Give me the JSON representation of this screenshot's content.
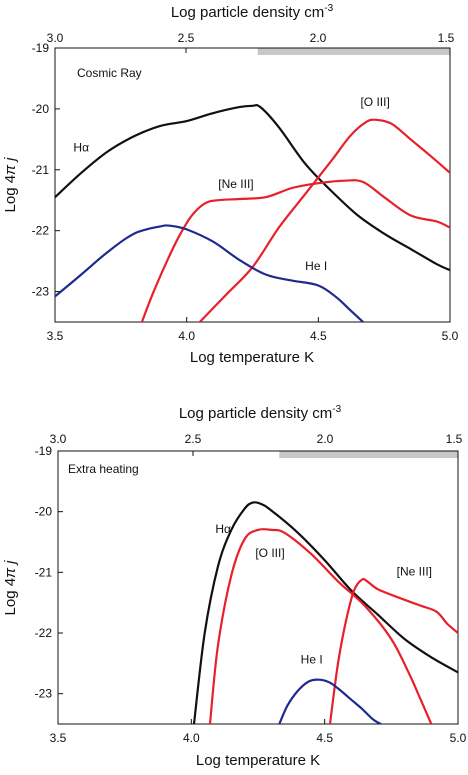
{
  "chart_data": [
    {
      "type": "line",
      "panel_label": "Cosmic Ray",
      "xlabel": "Log temperature K",
      "x2label": "Log particle density cm",
      "x2label_exponent": "-3",
      "ylabel_prefix": "Log 4",
      "ylabel_pi": "π",
      "ylabel_j": "j",
      "xlim": [
        3.5,
        5.0
      ],
      "ylim": [
        -23.5,
        -19.0
      ],
      "x_ticks": [
        "3.5",
        "4.0",
        "4.5",
        "5.0"
      ],
      "x_tick_values": [
        3.5,
        4.0,
        4.5,
        5.0
      ],
      "x2_ticks": [
        "3.0",
        "2.5",
        "2.0",
        "1.5"
      ],
      "y_ticks": [
        "-19",
        "-20",
        "-21",
        "-22",
        "-23"
      ],
      "y_tick_values": [
        -19,
        -20,
        -21,
        -22,
        -23
      ],
      "shaded_band_xrange": [
        4.27,
        5.0
      ],
      "series": [
        {
          "name": "Hα",
          "color": "#111111",
          "x": [
            3.5,
            3.6,
            3.7,
            3.8,
            3.9,
            4.0,
            4.1,
            4.2,
            4.25,
            4.28,
            4.35,
            4.45,
            4.55,
            4.65,
            4.75,
            4.85,
            4.95,
            5.0
          ],
          "y": [
            -21.45,
            -21.05,
            -20.7,
            -20.45,
            -20.28,
            -20.2,
            -20.07,
            -19.97,
            -19.95,
            -19.97,
            -20.3,
            -20.9,
            -21.35,
            -21.75,
            -22.05,
            -22.3,
            -22.55,
            -22.65
          ]
        },
        {
          "name": "[O III]",
          "color": "#e8202a",
          "x": [
            4.05,
            4.15,
            4.25,
            4.35,
            4.45,
            4.55,
            4.62,
            4.68,
            4.72,
            4.78,
            4.85,
            4.92,
            5.0
          ],
          "y": [
            -23.5,
            -23.05,
            -22.6,
            -21.95,
            -21.4,
            -20.85,
            -20.45,
            -20.22,
            -20.18,
            -20.25,
            -20.5,
            -20.75,
            -21.05
          ]
        },
        {
          "name": "[Ne III]",
          "color": "#e8202a",
          "x": [
            3.83,
            3.87,
            3.92,
            3.97,
            4.02,
            4.07,
            4.12,
            4.2,
            4.3,
            4.4,
            4.5,
            4.6,
            4.67,
            4.75,
            4.85,
            4.95,
            5.0
          ],
          "y": [
            -23.5,
            -23.05,
            -22.55,
            -22.1,
            -21.75,
            -21.55,
            -21.5,
            -21.48,
            -21.45,
            -21.3,
            -21.22,
            -21.18,
            -21.2,
            -21.45,
            -21.75,
            -21.85,
            -21.95
          ]
        },
        {
          "name": "He I",
          "color": "#1f2a8e",
          "x": [
            3.5,
            3.6,
            3.7,
            3.8,
            3.9,
            3.94,
            4.0,
            4.1,
            4.2,
            4.3,
            4.4,
            4.5,
            4.57,
            4.62,
            4.67
          ],
          "y": [
            -23.08,
            -22.72,
            -22.35,
            -22.05,
            -21.93,
            -21.92,
            -21.98,
            -22.18,
            -22.48,
            -22.72,
            -22.82,
            -22.9,
            -23.1,
            -23.3,
            -23.5
          ]
        }
      ],
      "annotations": [
        {
          "text": "Hα",
          "x": 3.57,
          "y": -20.7
        },
        {
          "text": "[O III]",
          "x": 4.66,
          "y": -19.95
        },
        {
          "text": "[Ne III]",
          "x": 4.12,
          "y": -21.3
        },
        {
          "text": "He I",
          "x": 4.45,
          "y": -22.65
        }
      ]
    },
    {
      "type": "line",
      "panel_label": "Extra heating",
      "xlabel": "Log temperature K",
      "x2label": "Log particle density cm",
      "x2label_exponent": "-3",
      "ylabel_prefix": "Log 4",
      "ylabel_pi": "π",
      "ylabel_j": "j",
      "xlim": [
        3.5,
        5.0
      ],
      "ylim": [
        -23.5,
        -19.0
      ],
      "x_ticks": [
        "3.5",
        "4.0",
        "4.5",
        "5.0"
      ],
      "x_tick_values": [
        3.5,
        4.0,
        4.5,
        5.0
      ],
      "x2_ticks": [
        "3.0",
        "2.5",
        "2.0",
        "1.5"
      ],
      "y_ticks": [
        "-19",
        "-20",
        "-21",
        "-22",
        "-23"
      ],
      "y_tick_values": [
        -19,
        -20,
        -21,
        -22,
        -23
      ],
      "shaded_band_xrange": [
        4.33,
        5.0
      ],
      "series": [
        {
          "name": "Hα",
          "color": "#111111",
          "x": [
            4.01,
            4.05,
            4.1,
            4.15,
            4.2,
            4.23,
            4.26,
            4.3,
            4.4,
            4.5,
            4.6,
            4.7,
            4.8,
            4.9,
            5.0
          ],
          "y": [
            -23.5,
            -22.0,
            -20.9,
            -20.3,
            -19.95,
            -19.85,
            -19.87,
            -19.98,
            -20.35,
            -20.8,
            -21.3,
            -21.7,
            -22.1,
            -22.4,
            -22.65
          ]
        },
        {
          "name": "[O III]",
          "color": "#e8202a",
          "x": [
            4.07,
            4.1,
            4.15,
            4.2,
            4.25,
            4.3,
            4.35,
            4.45,
            4.55,
            4.65,
            4.75,
            4.82,
            4.86,
            4.9
          ],
          "y": [
            -23.5,
            -22.2,
            -21.05,
            -20.45,
            -20.3,
            -20.3,
            -20.35,
            -20.7,
            -21.15,
            -21.55,
            -22.1,
            -22.7,
            -23.1,
            -23.5
          ]
        },
        {
          "name": "[Ne III]",
          "color": "#e8202a",
          "x": [
            4.52,
            4.55,
            4.58,
            4.61,
            4.64,
            4.66,
            4.7,
            4.78,
            4.86,
            4.92,
            4.96,
            5.0
          ],
          "y": [
            -23.5,
            -22.5,
            -21.8,
            -21.3,
            -21.12,
            -21.15,
            -21.28,
            -21.42,
            -21.55,
            -21.65,
            -21.85,
            -22.0
          ]
        },
        {
          "name": "He I",
          "color": "#1f2a8e",
          "x": [
            4.33,
            4.36,
            4.4,
            4.44,
            4.48,
            4.52,
            4.56,
            4.6,
            4.64,
            4.68,
            4.71
          ],
          "y": [
            -23.5,
            -23.2,
            -22.95,
            -22.8,
            -22.77,
            -22.82,
            -22.95,
            -23.1,
            -23.25,
            -23.42,
            -23.5
          ]
        }
      ],
      "annotations": [
        {
          "text": "Hα",
          "x": 4.09,
          "y": -20.35
        },
        {
          "text": "[O III]",
          "x": 4.24,
          "y": -20.75
        },
        {
          "text": "[Ne III]",
          "x": 4.77,
          "y": -21.05
        },
        {
          "text": "He I",
          "x": 4.41,
          "y": -22.5
        }
      ]
    }
  ]
}
